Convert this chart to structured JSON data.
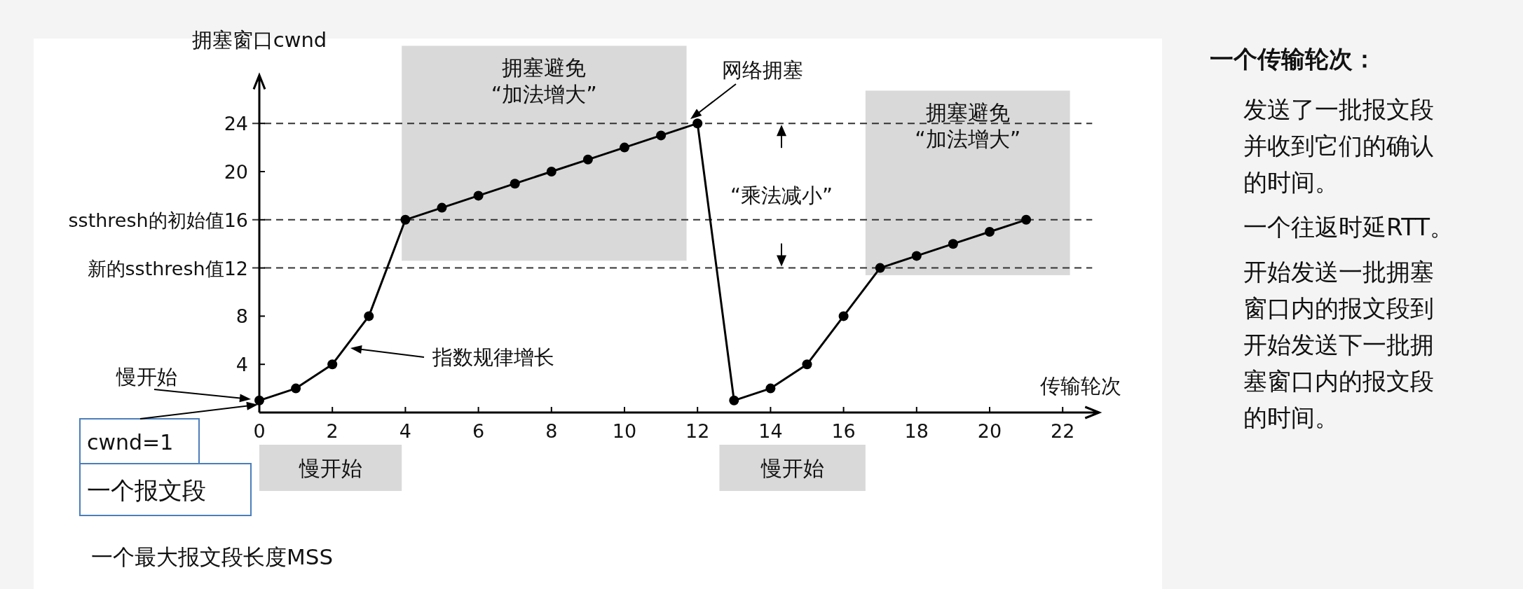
{
  "chart_data": {
    "type": "line",
    "xlabel": "传输轮次",
    "ylabel": "拥塞窗口cwnd",
    "x": [
      0,
      1,
      2,
      3,
      4,
      5,
      6,
      7,
      8,
      9,
      10,
      11,
      12,
      13,
      14,
      15,
      16,
      17,
      18,
      19,
      20,
      21
    ],
    "series": [
      {
        "color": "#000000",
        "values": [
          1,
          2,
          4,
          8,
          16,
          17,
          18,
          19,
          20,
          21,
          22,
          23,
          24,
          1,
          2,
          4,
          8,
          12,
          13,
          14,
          15,
          16
        ]
      }
    ],
    "marker": "circle",
    "line_style": "solid",
    "xlim": [
      0,
      23
    ],
    "ylim": [
      0,
      28
    ],
    "xticks": [
      0,
      2,
      4,
      6,
      8,
      10,
      12,
      14,
      16,
      18,
      20,
      22
    ],
    "yticks": [
      4,
      8,
      {
        "value": 12,
        "label": "新的ssthresh值12"
      },
      {
        "value": 16,
        "label": "ssthresh的初始值16"
      },
      20,
      24
    ],
    "ref_lines": [
      {
        "axis": "y",
        "value": 24,
        "line_style": "dashed"
      },
      {
        "axis": "y",
        "value": 16,
        "line_style": "dashed"
      },
      {
        "axis": "y",
        "value": 12,
        "line_style": "dashed"
      }
    ],
    "bands": [
      {
        "axis": "x",
        "from": 3.9,
        "to": 11.7,
        "label": "拥塞避免\n“加法增大”",
        "color": "#d9d9d9"
      },
      {
        "axis": "x",
        "from": 16.6,
        "to": 22.2,
        "label": "拥塞避免\n“加法增大”",
        "color": "#d9d9d9"
      }
    ],
    "annotations": [
      "慢开始",
      "指数规律增长",
      "网络拥塞",
      "“乘法减小”",
      "cwnd=1",
      "一个报文段",
      "一个最大报文段长度MSS",
      "一个传输轮次：",
      "发送了一批报文段并收到它们的确认的时间。",
      "一个往返时延RTT。",
      "开始发送一批拥塞窗口内的报文段到开始发送下一批拥塞窗口内的报文段的时间。",
      "慢开始",
      "慢开始"
    ]
  }
}
